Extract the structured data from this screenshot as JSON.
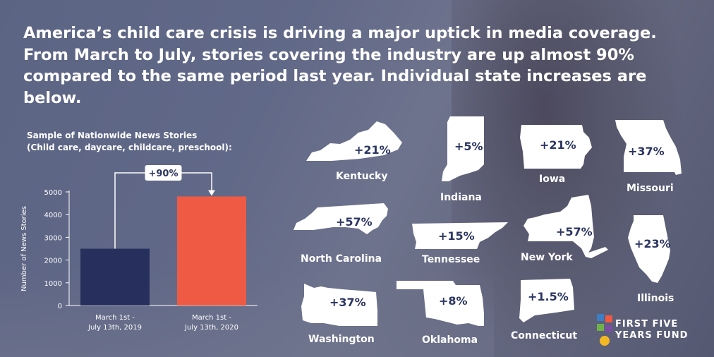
{
  "headline": "America’s child care crisis is driving a major uptick in media coverage. From March to July, stories covering the industry are up almost 90% compared to the same period last year. Individual state increases are below.",
  "subtitle": {
    "line1": "Sample of Nationwide News Stories",
    "line2": "(Child care, daycare, childcare, preschool):"
  },
  "colors": {
    "bar_2019": "#27305d",
    "bar_2020": "#ef5a45",
    "state_fill": "#ffffff",
    "state_pct_text": "#2b3560"
  },
  "chart_data": {
    "type": "bar",
    "categories": [
      "March 1st - July 13th, 2019",
      "March 1st - July 13th, 2020"
    ],
    "values": [
      2500,
      4800
    ],
    "ylabel": "Number of News Stories",
    "ylim": [
      0,
      5000
    ],
    "yticks": [
      0,
      1000,
      2000,
      3000,
      4000,
      5000
    ],
    "annotation": "+90%",
    "grid": false
  },
  "states": [
    {
      "name": "Kentucky",
      "change": "+21%"
    },
    {
      "name": "Indiana",
      "change": "+5%"
    },
    {
      "name": "Iowa",
      "change": "+21%"
    },
    {
      "name": "Missouri",
      "change": "+37%"
    },
    {
      "name": "North Carolina",
      "change": "+57%"
    },
    {
      "name": "Tennessee",
      "change": "+15%"
    },
    {
      "name": "New York",
      "change": "+57%"
    },
    {
      "name": "Illinois",
      "change": "+23%"
    },
    {
      "name": "Washington",
      "change": "+37%"
    },
    {
      "name": "Oklahoma",
      "change": "+8%"
    },
    {
      "name": "Connecticut",
      "change": "+1.5%"
    }
  ],
  "logo": {
    "line1": "FIRST FIVE",
    "line2": "YEARS FUND"
  }
}
